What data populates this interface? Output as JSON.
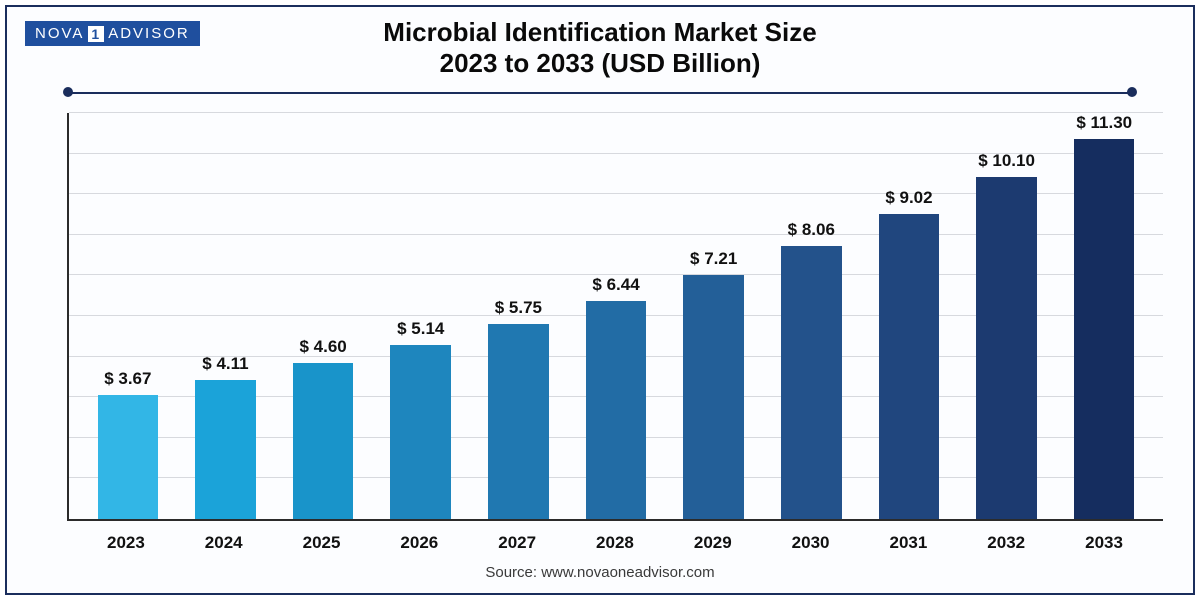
{
  "logo": {
    "left": "NOVA",
    "one": "1",
    "right": "ADVISOR"
  },
  "title": {
    "line1": "Microbial Identification Market Size",
    "line2": "2023 to 2033 (USD Billion)"
  },
  "chart": {
    "type": "bar",
    "y_max": 12.0,
    "grid_steps": 10,
    "grid_color": "#d7d9de",
    "axis_color": "#2b2b2b",
    "background": "#fcfdff",
    "border_color": "#1a2d5c",
    "bar_width_pct": 62,
    "label_fontsize": 17,
    "label_fontweight": 700,
    "categories": [
      "2023",
      "2024",
      "2025",
      "2026",
      "2027",
      "2028",
      "2029",
      "2030",
      "2031",
      "2032",
      "2033"
    ],
    "values": [
      3.67,
      4.11,
      4.6,
      5.14,
      5.75,
      6.44,
      7.21,
      8.06,
      9.02,
      10.1,
      11.3
    ],
    "value_labels": [
      "$ 3.67",
      "$ 4.11",
      "$ 4.60",
      "$ 5.14",
      "$ 5.75",
      "$ 6.44",
      "$ 7.21",
      "$ 8.06",
      "$ 9.02",
      "$ 10.10",
      "$ 11.30"
    ],
    "bar_colors": [
      "#32b6e6",
      "#1ba3d9",
      "#1994ca",
      "#1e86be",
      "#2078b1",
      "#226ca5",
      "#235f98",
      "#23528b",
      "#20467e",
      "#1c3a70",
      "#152d5f"
    ]
  },
  "source": "Source: www.novaoneadvisor.com"
}
